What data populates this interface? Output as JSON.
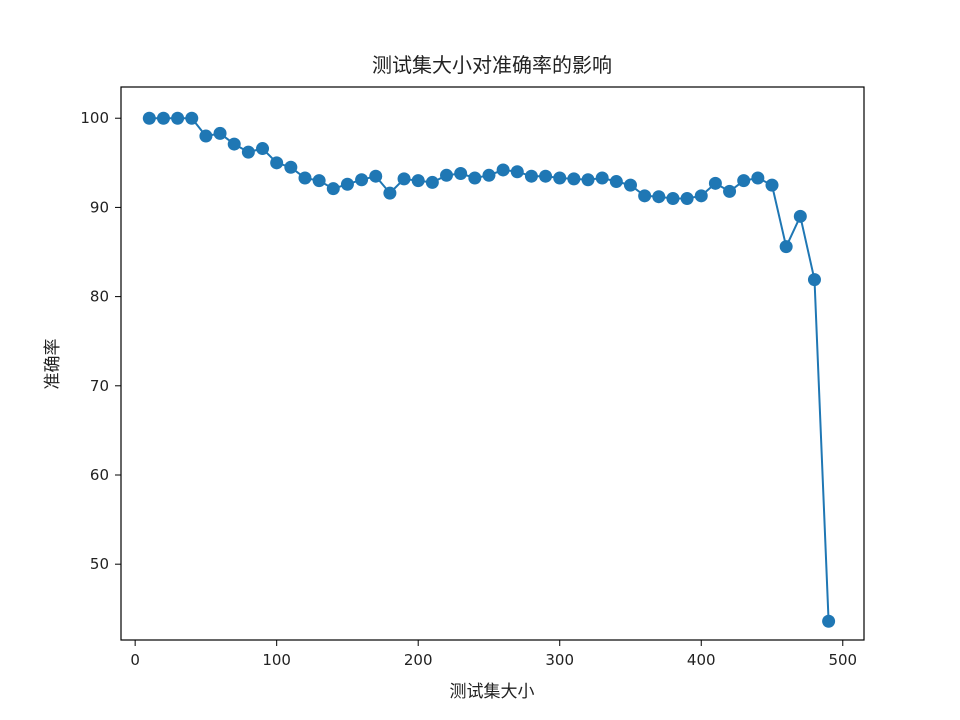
{
  "chart_data": {
    "type": "line",
    "title": "测试集大小对准确率的影响",
    "xlabel": "测试集大小",
    "ylabel": "准确率",
    "xlim": [
      -10,
      515
    ],
    "ylim": [
      41.5,
      103.5
    ],
    "x_ticks": [
      0,
      100,
      200,
      300,
      400,
      500
    ],
    "y_ticks": [
      50,
      60,
      70,
      80,
      90,
      100
    ],
    "grid": false,
    "marker": "circle",
    "color": "#1f77b4",
    "series": [
      {
        "x": [
          10,
          20,
          30,
          40,
          50,
          60,
          70,
          80,
          90,
          100,
          110,
          120,
          130,
          140,
          150,
          160,
          170,
          180,
          190,
          200,
          210,
          220,
          230,
          240,
          250,
          260,
          270,
          280,
          290,
          300,
          310,
          320,
          330,
          340,
          350,
          360,
          370,
          380,
          390,
          400,
          410,
          420,
          430,
          440,
          450,
          460,
          470,
          480,
          490
        ],
        "values": [
          100,
          100,
          100,
          100,
          98.0,
          98.3,
          97.1,
          96.2,
          96.6,
          95.0,
          94.5,
          93.3,
          93.0,
          92.1,
          92.6,
          93.1,
          93.5,
          91.6,
          93.2,
          93.0,
          92.8,
          93.6,
          93.8,
          93.3,
          93.6,
          94.2,
          94.0,
          93.5,
          93.5,
          93.3,
          93.2,
          93.1,
          93.3,
          92.9,
          92.5,
          91.3,
          91.2,
          91.0,
          91.0,
          91.3,
          92.7,
          91.8,
          93.0,
          93.3,
          92.5,
          85.6,
          89.0,
          81.9,
          43.6
        ]
      }
    ]
  }
}
